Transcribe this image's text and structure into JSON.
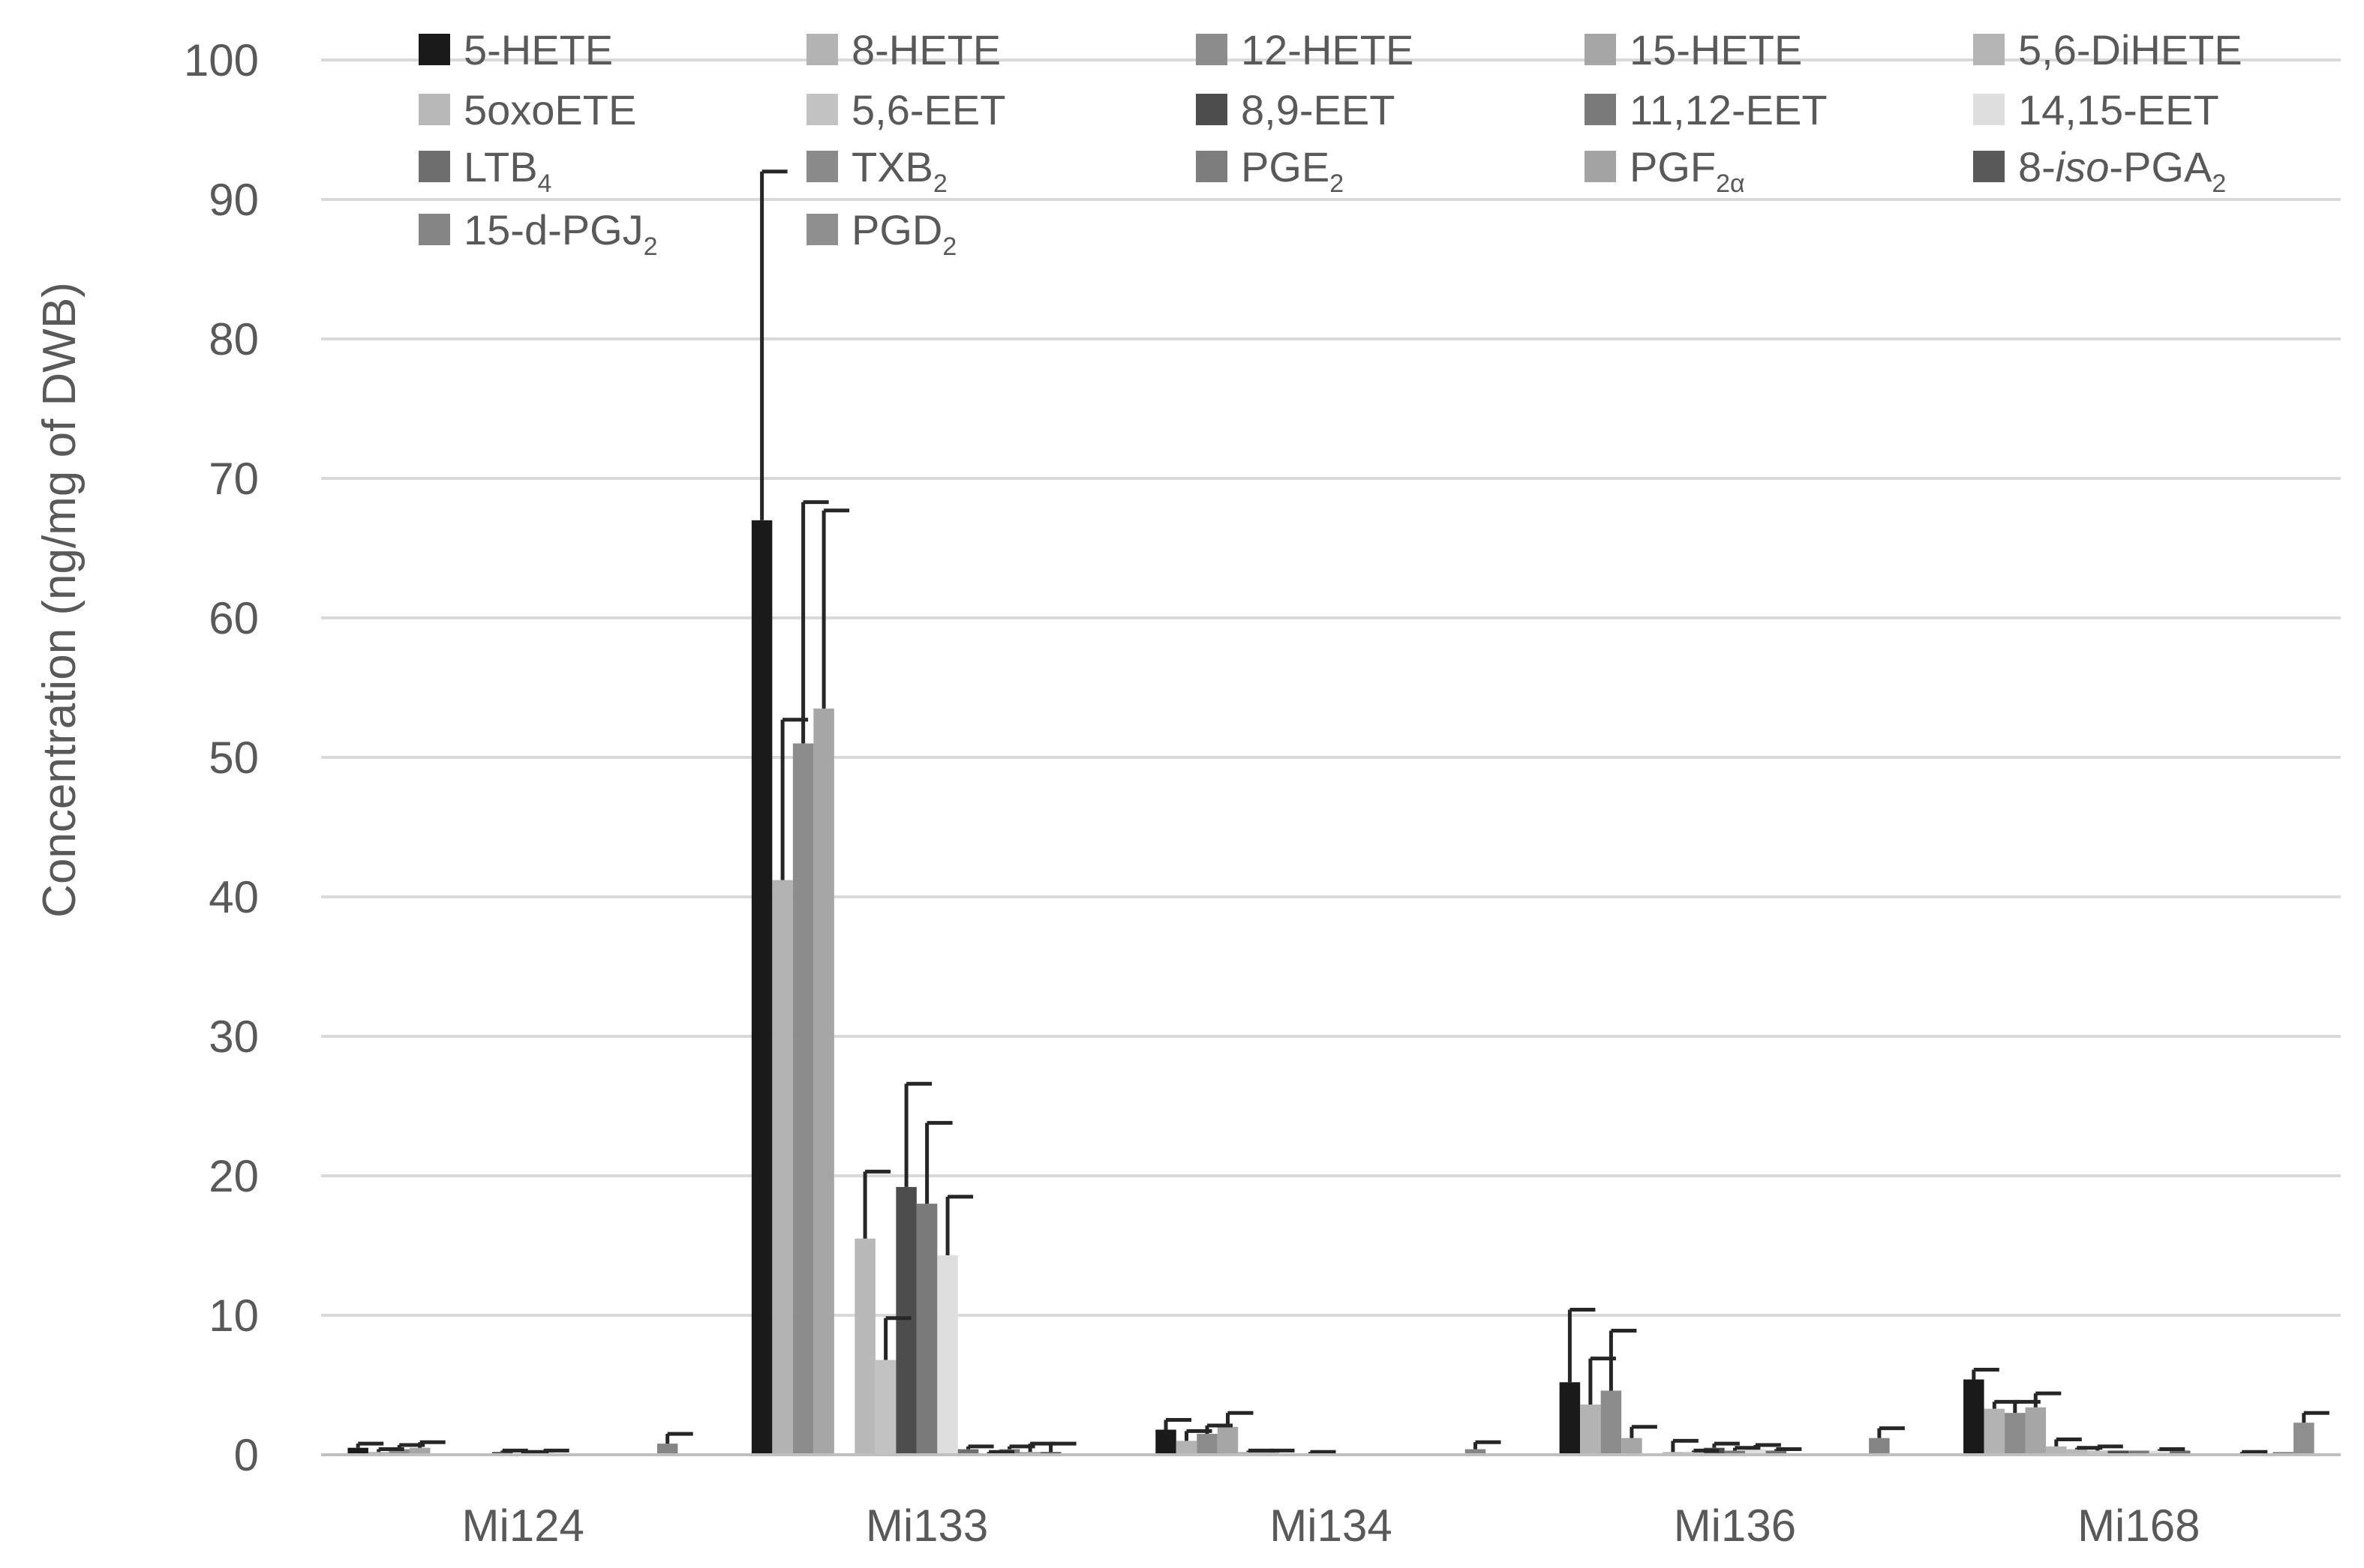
{
  "chart_data": {
    "type": "bar",
    "title": "",
    "xlabel": "",
    "ylabel": "Concentration (ng/mg of DWB)",
    "ylim": [
      0,
      100
    ],
    "yticks": [
      0,
      10,
      20,
      30,
      40,
      50,
      60,
      70,
      80,
      90,
      100
    ],
    "grid": true,
    "legend_position": "top",
    "categories": [
      "Mi124",
      "Mi133",
      "Mi134",
      "Mi136",
      "Mi168"
    ],
    "series": [
      {
        "name": "5-HETE",
        "label_main": "5-HETE",
        "color": "#1a1a1a",
        "values": [
          0.5,
          67.0,
          1.8,
          5.2,
          5.4
        ],
        "errors": [
          0.3,
          25.0,
          0.7,
          5.2,
          0.7
        ]
      },
      {
        "name": "8-HETE",
        "label_main": "8-HETE",
        "color": "#b3b3b3",
        "values": [
          0.2,
          41.2,
          1.0,
          3.6,
          3.3
        ],
        "errors": [
          0.2,
          11.5,
          0.7,
          3.3,
          0.5
        ]
      },
      {
        "name": "12-HETE",
        "label_main": "12-HETE",
        "color": "#8c8c8c",
        "values": [
          0.4,
          51.0,
          1.5,
          4.6,
          3.0
        ],
        "errors": [
          0.3,
          17.3,
          0.6,
          4.3,
          0.8
        ]
      },
      {
        "name": "15-HETE",
        "label_main": "15-HETE",
        "color": "#a6a6a6",
        "values": [
          0.5,
          53.5,
          2.0,
          1.2,
          3.4
        ],
        "errors": [
          0.4,
          14.2,
          1.0,
          0.8,
          1.0
        ]
      },
      {
        "name": "5,6-DiHETE",
        "label_main": "5,6-DiHETE",
        "color": "#b5b5b5",
        "values": [
          0.1,
          0.1,
          0.2,
          0.1,
          0.6
        ],
        "errors": [
          0.0,
          0.0,
          0.1,
          0.0,
          0.5
        ]
      },
      {
        "name": "5oxoETE",
        "label_main": "5oxoETE",
        "color": "#b8b8b8",
        "values": [
          0.1,
          15.5,
          0.2,
          0.2,
          0.4
        ],
        "errors": [
          0.0,
          4.8,
          0.1,
          0.8,
          0.1
        ]
      },
      {
        "name": "5,6-EET",
        "label_main": "5,6-EET",
        "color": "#c2c2c2",
        "values": [
          0.1,
          6.8,
          0.1,
          0.2,
          0.3
        ],
        "errors": [
          0.0,
          3.0,
          0.0,
          0.1,
          0.3
        ]
      },
      {
        "name": "8,9-EET",
        "label_main": "8,9-EET",
        "color": "#4d4d4d",
        "values": [
          0.2,
          19.2,
          0.1,
          0.5,
          0.3
        ],
        "errors": [
          0.1,
          7.4,
          0.1,
          0.3,
          0.0
        ]
      },
      {
        "name": "11,12-EET",
        "label_main": "11,12-EET",
        "color": "#7a7a7a",
        "values": [
          0.1,
          18.0,
          0.1,
          0.3,
          0.3
        ],
        "errors": [
          0.1,
          5.8,
          0.0,
          0.2,
          0.0
        ]
      },
      {
        "name": "14,15-EET",
        "label_main": "14,15-EET",
        "color": "#dedede",
        "values": [
          0.2,
          14.3,
          0.1,
          0.4,
          0.3
        ],
        "errors": [
          0.1,
          4.2,
          0.0,
          0.3,
          0.1
        ]
      },
      {
        "name": "LTB4",
        "label_main": "LTB",
        "label_sub": "4",
        "color": "#6e6e6e",
        "values": [
          0.1,
          0.4,
          0.1,
          0.3,
          0.3
        ],
        "errors": [
          0.0,
          0.2,
          0.0,
          0.1,
          0.0
        ]
      },
      {
        "name": "TXB2",
        "label_main": "TXB",
        "label_sub": "2",
        "color": "#8a8a8a",
        "values": [
          0.1,
          0.1,
          0.1,
          0.1,
          0.1
        ],
        "errors": [
          0.0,
          0.1,
          0.0,
          0.0,
          0.0
        ]
      },
      {
        "name": "PGE2",
        "label_main": "PGE",
        "label_sub": "2",
        "color": "#7d7d7d",
        "values": [
          0.1,
          0.4,
          0.1,
          0.1,
          0.1
        ],
        "errors": [
          0.0,
          0.2,
          0.0,
          0.0,
          0.0
        ]
      },
      {
        "name": "PGF2α",
        "label_main": "PGF",
        "label_sub": "2α",
        "color": "#a3a3a3",
        "values": [
          0.1,
          0.2,
          0.1,
          0.1,
          0.1
        ],
        "errors": [
          0.0,
          0.6,
          0.0,
          0.0,
          0.1
        ]
      },
      {
        "name": "8-iso-PGA2",
        "label_pre": "8-",
        "label_italic": "iso",
        "label_main": "-PGA",
        "label_sub": "2",
        "color": "#595959",
        "values": [
          0.1,
          0.2,
          0.1,
          0.1,
          0.1
        ],
        "errors": [
          0.0,
          0.6,
          0.0,
          0.0,
          0.0
        ]
      },
      {
        "name": "15-d-PGJ2",
        "label_main": "15-d-PGJ",
        "label_sub": "2",
        "color": "#858585",
        "values": [
          0.8,
          0.1,
          0.4,
          1.2,
          0.2
        ],
        "errors": [
          0.7,
          0.0,
          0.5,
          0.7,
          0.0
        ]
      },
      {
        "name": "PGD2",
        "label_main": "PGD",
        "label_sub": "2",
        "color": "#8f8f8f",
        "values": [
          0.1,
          0.1,
          0.1,
          0.1,
          2.3
        ],
        "errors": [
          0.0,
          0.0,
          0.0,
          0.0,
          0.7
        ]
      }
    ]
  }
}
